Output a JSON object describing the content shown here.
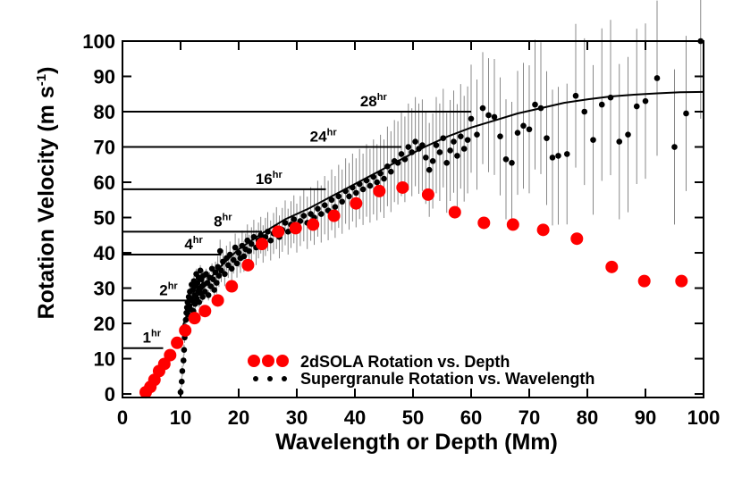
{
  "chart_data": {
    "type": "scatter",
    "xlabel": "Wavelength or Depth (Mm)",
    "ylabel_main": "Rotation Velocity (m s",
    "ylabel_sup": "-1",
    "ylabel_close": ")",
    "xlim": [
      0,
      100
    ],
    "ylim": [
      -1,
      100
    ],
    "x_ticks": [
      0,
      10,
      20,
      30,
      40,
      50,
      60,
      70,
      80,
      90,
      100
    ],
    "y_ticks": [
      0,
      10,
      20,
      30,
      40,
      50,
      60,
      70,
      80,
      90,
      100
    ],
    "legend_position": "bottom-center",
    "colors": {
      "sola": "#ff0000",
      "supergranule": "#000000",
      "fit": "#000000",
      "error_bars": "#888888"
    },
    "series": [
      {
        "name": "2dSOLA Rotation vs. Depth",
        "marker": "large-red-circle",
        "points": [
          [
            4.0,
            0.5
          ],
          [
            4.8,
            2.0
          ],
          [
            5.5,
            4.0
          ],
          [
            6.3,
            6.5
          ],
          [
            7.2,
            8.5
          ],
          [
            8.2,
            11.0
          ],
          [
            9.4,
            14.5
          ],
          [
            10.8,
            18.0
          ],
          [
            12.4,
            21.5
          ],
          [
            14.2,
            23.5
          ],
          [
            16.4,
            26.5
          ],
          [
            18.8,
            30.5
          ],
          [
            21.6,
            36.5
          ],
          [
            24.0,
            42.5
          ],
          [
            26.8,
            46.0
          ],
          [
            29.8,
            47.0
          ],
          [
            32.8,
            48.0
          ],
          [
            36.4,
            50.5
          ],
          [
            40.2,
            54.0
          ],
          [
            44.2,
            57.5
          ],
          [
            48.2,
            58.5
          ],
          [
            52.6,
            56.5
          ],
          [
            57.2,
            51.5
          ],
          [
            62.2,
            48.5
          ],
          [
            67.2,
            48.0
          ],
          [
            72.4,
            46.5
          ],
          [
            78.2,
            44.0
          ],
          [
            84.2,
            36.0
          ],
          [
            89.8,
            32.0
          ],
          [
            96.2,
            32.0
          ]
        ]
      },
      {
        "name": "Supergranule Rotation vs. Wavelength",
        "marker": "small-black-dot",
        "points": [
          [
            10.0,
            0.5
          ],
          [
            10.2,
            3.5
          ],
          [
            10.3,
            6.5
          ],
          [
            10.5,
            9.5
          ],
          [
            10.6,
            12.5
          ],
          [
            10.7,
            16.0
          ],
          [
            10.8,
            19.0
          ],
          [
            10.9,
            21.0
          ],
          [
            11.0,
            23.0
          ],
          [
            11.1,
            24.5
          ],
          [
            11.2,
            26.0
          ],
          [
            11.3,
            22.5
          ],
          [
            11.4,
            27.5
          ],
          [
            11.5,
            25.0
          ],
          [
            11.6,
            29.0
          ],
          [
            11.7,
            24.0
          ],
          [
            11.8,
            27.0
          ],
          [
            11.9,
            31.0
          ],
          [
            12.0,
            26.5
          ],
          [
            12.1,
            29.5
          ],
          [
            12.2,
            23.5
          ],
          [
            12.3,
            32.0
          ],
          [
            12.4,
            28.0
          ],
          [
            12.5,
            25.5
          ],
          [
            12.6,
            30.5
          ],
          [
            12.7,
            34.0
          ],
          [
            12.8,
            27.0
          ],
          [
            12.9,
            31.5
          ],
          [
            13.0,
            29.0
          ],
          [
            13.1,
            33.0
          ],
          [
            13.2,
            26.0
          ],
          [
            13.3,
            30.0
          ],
          [
            13.4,
            35.0
          ],
          [
            13.5,
            28.5
          ],
          [
            13.6,
            32.5
          ],
          [
            13.7,
            30.5
          ],
          [
            13.8,
            27.5
          ],
          [
            13.9,
            33.5
          ],
          [
            14.0,
            31.0
          ],
          [
            14.2,
            29.0
          ],
          [
            14.4,
            34.0
          ],
          [
            14.6,
            31.5
          ],
          [
            14.8,
            28.0
          ],
          [
            15.0,
            33.0
          ],
          [
            15.2,
            30.5
          ],
          [
            15.4,
            35.5
          ],
          [
            15.6,
            32.5
          ],
          [
            15.8,
            29.5
          ],
          [
            16.0,
            34.5
          ],
          [
            16.2,
            31.5
          ],
          [
            16.4,
            36.0
          ],
          [
            16.6,
            33.5
          ],
          [
            16.8,
            40.5
          ],
          [
            17.0,
            35.0
          ],
          [
            17.3,
            37.5
          ],
          [
            17.6,
            34.0
          ],
          [
            17.9,
            38.5
          ],
          [
            18.2,
            36.5
          ],
          [
            18.5,
            39.5
          ],
          [
            18.8,
            35.5
          ],
          [
            19.1,
            38.0
          ],
          [
            19.4,
            41.5
          ],
          [
            19.7,
            37.0
          ],
          [
            20.0,
            40.0
          ],
          [
            20.3,
            38.5
          ],
          [
            20.6,
            42.0
          ],
          [
            20.9,
            39.0
          ],
          [
            21.2,
            41.0
          ],
          [
            21.5,
            43.5
          ],
          [
            21.8,
            40.5
          ],
          [
            22.2,
            42.5
          ],
          [
            22.6,
            44.5
          ],
          [
            23.0,
            41.5
          ],
          [
            23.4,
            43.5
          ],
          [
            23.8,
            45.0
          ],
          [
            24.2,
            42.5
          ],
          [
            24.6,
            44.5
          ],
          [
            25.0,
            46.0
          ],
          [
            25.5,
            43.5
          ],
          [
            26.0,
            45.5
          ],
          [
            26.5,
            47.0
          ],
          [
            27.0,
            44.5
          ],
          [
            27.5,
            46.5
          ],
          [
            28.0,
            48.5
          ],
          [
            28.5,
            46.0
          ],
          [
            29.0,
            48.0
          ],
          [
            29.5,
            49.5
          ],
          [
            30.0,
            47.0
          ],
          [
            30.6,
            49.0
          ],
          [
            31.2,
            50.5
          ],
          [
            31.8,
            48.5
          ],
          [
            32.4,
            51.0
          ],
          [
            33.0,
            50.0
          ],
          [
            33.6,
            52.5
          ],
          [
            34.2,
            51.0
          ],
          [
            34.8,
            53.5
          ],
          [
            35.4,
            52.0
          ],
          [
            36.0,
            55.0
          ],
          [
            36.6,
            53.0
          ],
          [
            37.2,
            56.0
          ],
          [
            37.8,
            54.5
          ],
          [
            38.4,
            57.5
          ],
          [
            39.0,
            56.0
          ],
          [
            39.6,
            58.5
          ],
          [
            40.2,
            57.0
          ],
          [
            40.8,
            59.5
          ],
          [
            41.4,
            58.0
          ],
          [
            42.0,
            60.5
          ],
          [
            42.6,
            59.0
          ],
          [
            43.2,
            61.5
          ],
          [
            43.8,
            60.0
          ],
          [
            44.4,
            62.5
          ],
          [
            45.0,
            61.0
          ],
          [
            45.6,
            64.5
          ],
          [
            46.2,
            63.0
          ],
          [
            46.8,
            66.0
          ],
          [
            47.4,
            65.5
          ],
          [
            48.0,
            68.0
          ],
          [
            48.6,
            66.5
          ],
          [
            49.2,
            70.0
          ],
          [
            49.8,
            68.5
          ],
          [
            50.4,
            71.5
          ],
          [
            51.0,
            69.5
          ],
          [
            51.6,
            70.5
          ],
          [
            52.2,
            67.0
          ],
          [
            52.8,
            63.5
          ],
          [
            53.4,
            66.0
          ],
          [
            54.0,
            70.5
          ],
          [
            54.6,
            68.5
          ],
          [
            55.2,
            72.5
          ],
          [
            55.8,
            65.5
          ],
          [
            56.4,
            69.0
          ],
          [
            57.0,
            71.5
          ],
          [
            57.6,
            67.5
          ],
          [
            58.2,
            73.0
          ],
          [
            58.8,
            69.5
          ],
          [
            59.4,
            72.0
          ],
          [
            60.0,
            78.0
          ],
          [
            61.0,
            73.5
          ],
          [
            62.0,
            81.0
          ],
          [
            63.0,
            79.0
          ],
          [
            64.0,
            78.5
          ],
          [
            65.0,
            73.0
          ],
          [
            66.0,
            66.5
          ],
          [
            67.0,
            65.5
          ],
          [
            68.0,
            74.0
          ],
          [
            69.0,
            76.0
          ],
          [
            70.0,
            75.0
          ],
          [
            71.0,
            82.0
          ],
          [
            72.0,
            81.0
          ],
          [
            73.0,
            72.5
          ],
          [
            74.0,
            67.0
          ],
          [
            75.0,
            67.5
          ],
          [
            76.5,
            68.0
          ],
          [
            78.0,
            84.5
          ],
          [
            79.5,
            80.0
          ],
          [
            81.0,
            72.0
          ],
          [
            82.5,
            82.0
          ],
          [
            84.0,
            84.0
          ],
          [
            85.5,
            71.5
          ],
          [
            87.0,
            73.5
          ],
          [
            88.5,
            81.5
          ],
          [
            90.0,
            83.0
          ],
          [
            92.0,
            89.5
          ],
          [
            95.0,
            70.0
          ],
          [
            97.0,
            79.5
          ],
          [
            99.5,
            100.0
          ]
        ]
      }
    ],
    "fit_curve_points": [
      [
        10.0,
        17.5
      ],
      [
        11.0,
        22.0
      ],
      [
        12.0,
        25.5
      ],
      [
        14.0,
        30.5
      ],
      [
        16.0,
        34.5
      ],
      [
        18.0,
        38.0
      ],
      [
        20.0,
        41.0
      ],
      [
        24.0,
        45.5
      ],
      [
        28.0,
        49.5
      ],
      [
        32.0,
        52.5
      ],
      [
        36.0,
        56.0
      ],
      [
        40.0,
        59.5
      ],
      [
        44.0,
        63.0
      ],
      [
        48.0,
        66.5
      ],
      [
        52.0,
        70.0
      ],
      [
        56.0,
        73.0
      ],
      [
        60.0,
        75.5
      ],
      [
        64.0,
        77.5
      ],
      [
        68.0,
        79.5
      ],
      [
        72.0,
        81.0
      ],
      [
        76.0,
        82.5
      ],
      [
        80.0,
        83.5
      ],
      [
        84.0,
        84.3
      ],
      [
        88.0,
        84.8
      ],
      [
        92.0,
        85.2
      ],
      [
        96.0,
        85.5
      ],
      [
        100.0,
        85.6
      ]
    ],
    "period_lines": [
      {
        "label": "1",
        "sup": "hr",
        "y": 13,
        "x_end": 7
      },
      {
        "label": "2",
        "sup": "hr",
        "y": 26.5,
        "x_end": 11
      },
      {
        "label": "4",
        "sup": "hr",
        "y": 39.5,
        "x_end": 17
      },
      {
        "label": "8",
        "sup": "hr",
        "y": 46,
        "x_end": 24
      },
      {
        "label": "16",
        "sup": "hr",
        "y": 58,
        "x_end": 35
      },
      {
        "label": "24",
        "sup": "hr",
        "y": 70,
        "x_end": 48
      },
      {
        "label": "28",
        "sup": "hr",
        "y": 80,
        "x_end": 60
      }
    ]
  }
}
